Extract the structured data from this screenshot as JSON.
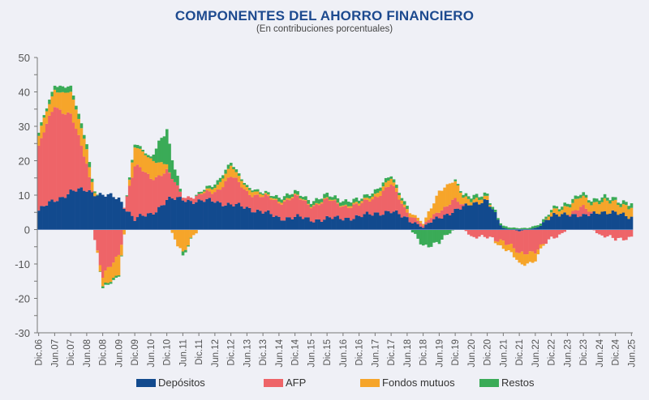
{
  "chart_data": {
    "type": "bar",
    "stacked": true,
    "title": "COMPONENTES DEL AHORRO FINANCIERO",
    "subtitle": "(En contribuciones porcentuales)",
    "xlabel": "",
    "ylabel": "",
    "ylim": [
      -30,
      50
    ],
    "yticks": [
      "50",
      "40",
      "30",
      "20",
      "10",
      "0",
      "-10",
      "-20",
      "-30"
    ],
    "categories": [
      "Dic.06",
      "Jun.07",
      "Dic.07",
      "Jun.08",
      "Dic.08",
      "Jun.09",
      "Dic.09",
      "Jun.10",
      "Dic.10",
      "Jun.11",
      "Dic.11",
      "Jun.12",
      "Dic.12",
      "Jun.13",
      "Dic.13",
      "Jun.14",
      "Dic.14",
      "Jun.15",
      "Dic.15",
      "Jun.16",
      "Dic.16",
      "Jun.17",
      "Dic.17",
      "Jun.18",
      "Dic.18",
      "Jun.19",
      "Dic.19",
      "Jun.20",
      "Dic.20",
      "Jun.21",
      "Dic.21",
      "Jun.22",
      "Dic.22",
      "Jun.23",
      "Dic.23",
      "Jun.24",
      "Dic.24",
      "Jun.25"
    ],
    "series": [
      {
        "name": "Depósitos",
        "color": "#124a8e",
        "values": [
          5.5,
          8.5,
          11,
          11.5,
          10,
          9,
          3,
          4.5,
          8.5,
          9,
          8,
          8.5,
          7,
          6.5,
          5,
          3.5,
          3.5,
          3,
          3,
          3.5,
          3.5,
          5,
          5,
          3.5,
          0.5,
          4,
          5,
          8,
          8,
          0.5,
          -0.5,
          0.5,
          3.5,
          5,
          3.5,
          5.5,
          4.5,
          4
        ]
      },
      {
        "name": "AFP",
        "color": "#ee6468",
        "values": [
          18,
          28,
          22,
          8,
          -14,
          -7,
          15,
          11,
          8,
          1,
          1.5,
          3,
          8,
          5,
          4,
          5,
          5.5,
          4.5,
          5,
          4,
          3,
          5,
          7.5,
          2,
          0.5,
          2,
          3,
          -2,
          -2.5,
          -3,
          -7,
          -6,
          -3,
          0,
          2.5,
          -1.5,
          -3,
          -2
        ]
      },
      {
        "name": "Fondos mutuos",
        "color": "#f6a52a",
        "values": [
          3,
          5,
          6,
          5,
          -3.5,
          -5,
          5,
          6,
          1.5,
          -6.5,
          0,
          1.5,
          2.5,
          1.5,
          0.5,
          0.5,
          0.3,
          0.3,
          0.3,
          0.3,
          0.5,
          1,
          1.5,
          1,
          0.5,
          6,
          5,
          1,
          1,
          -2,
          -3,
          -2.5,
          1.5,
          2,
          3,
          3,
          3,
          3
        ]
      },
      {
        "name": "Restos",
        "color": "#3aab57",
        "values": [
          0.8,
          1.5,
          1.5,
          1.5,
          -0.5,
          -0.5,
          1,
          0.5,
          10,
          -1,
          0.5,
          1,
          1,
          0.5,
          0.5,
          1,
          1,
          1,
          1.2,
          1.2,
          1,
          1,
          1,
          0.8,
          -4.5,
          -4,
          0.5,
          1,
          0.8,
          0.5,
          0.5,
          0.5,
          0.8,
          0.8,
          1,
          1,
          1,
          1
        ]
      }
    ],
    "legend_position": "bottom",
    "grid": false
  }
}
